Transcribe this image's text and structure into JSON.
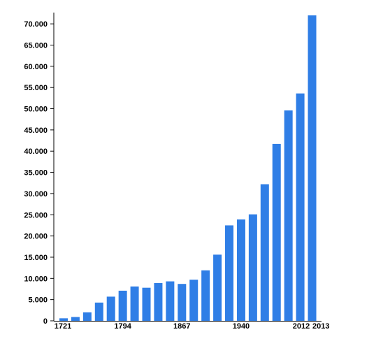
{
  "chart_data": {
    "type": "bar",
    "title": "",
    "xlabel": "",
    "ylabel": "",
    "ylim": [
      0,
      72000
    ],
    "grid": false,
    "legend": "none",
    "bar_color": "#2f7ee6",
    "y_ticks": [
      {
        "value": 0,
        "label": "0"
      },
      {
        "value": 5000,
        "label": "5.000"
      },
      {
        "value": 10000,
        "label": "10.000"
      },
      {
        "value": 15000,
        "label": "15.000"
      },
      {
        "value": 20000,
        "label": "20.000"
      },
      {
        "value": 25000,
        "label": "25.000"
      },
      {
        "value": 30000,
        "label": "30.000"
      },
      {
        "value": 35000,
        "label": "35.000"
      },
      {
        "value": 40000,
        "label": "40.000"
      },
      {
        "value": 45000,
        "label": "45.000"
      },
      {
        "value": 50000,
        "label": "50.000"
      },
      {
        "value": 55000,
        "label": "55.000"
      },
      {
        "value": 60000,
        "label": "60.000"
      },
      {
        "value": 65000,
        "label": "65.000"
      },
      {
        "value": 70000,
        "label": "70.000"
      }
    ],
    "x_tick_labels": [
      {
        "bar_index": 0,
        "label": "1721"
      },
      {
        "bar_index": 5,
        "label": "1794"
      },
      {
        "bar_index": 10,
        "label": "1867"
      },
      {
        "bar_index": 15,
        "label": "1940"
      },
      {
        "bar_index": 20,
        "label": "2012"
      },
      {
        "bar_index": 21,
        "label": "2013"
      }
    ],
    "values": [
      600,
      900,
      2000,
      4300,
      5700,
      7100,
      8100,
      7800,
      8900,
      9300,
      8700,
      9700,
      11900,
      15600,
      22500,
      23900,
      25100,
      32200,
      41700,
      49600,
      53600,
      72000
    ]
  }
}
